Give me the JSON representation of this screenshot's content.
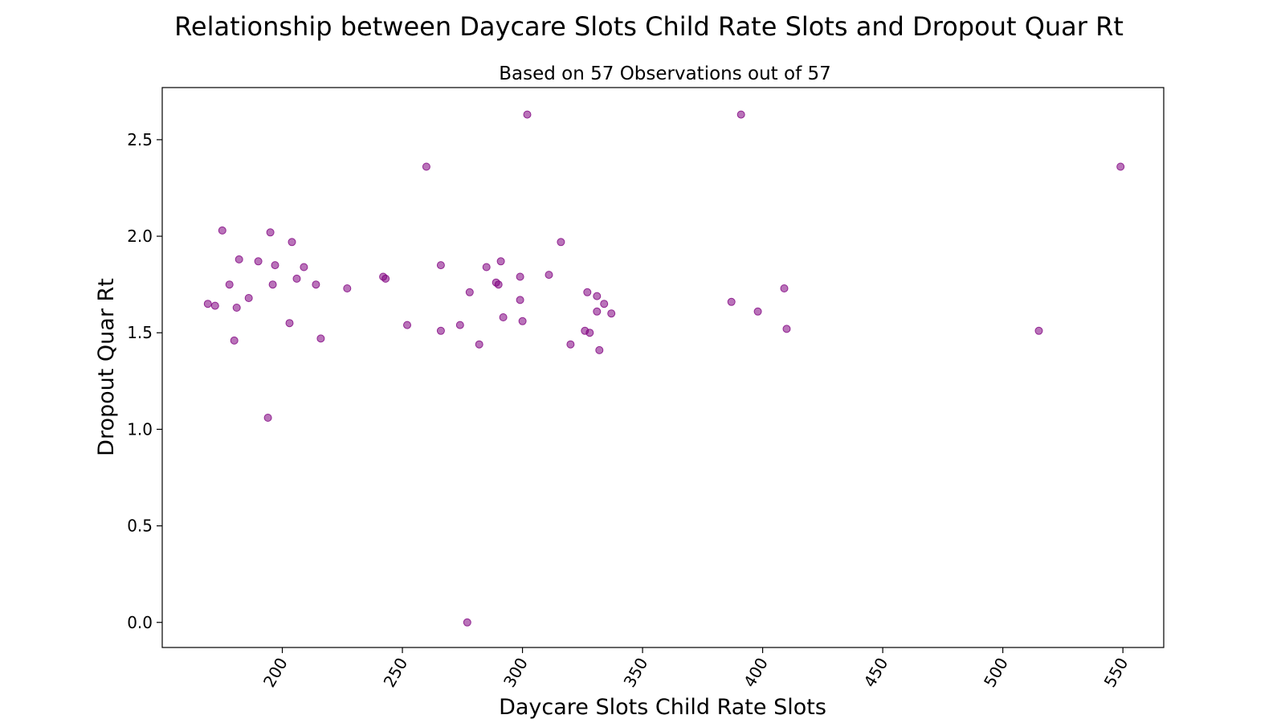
{
  "chart_data": {
    "type": "scatter",
    "title": "Relationship between Daycare Slots Child Rate Slots and Dropout Quar Rt",
    "subtitle": "Based on 57 Observations out of 57",
    "xlabel": "Daycare Slots Child Rate Slots",
    "ylabel": "Dropout Quar Rt",
    "xlim": [
      150,
      567
    ],
    "ylim": [
      -0.13,
      2.77
    ],
    "x_ticks": [
      "200",
      "250",
      "300",
      "350",
      "400",
      "450",
      "500",
      "550"
    ],
    "y_ticks": [
      "0.0",
      "0.5",
      "1.0",
      "1.5",
      "2.0",
      "2.5"
    ],
    "grid": false,
    "marker_color": "#800080",
    "points": [
      {
        "x": 169,
        "y": 1.65
      },
      {
        "x": 172,
        "y": 1.64
      },
      {
        "x": 175,
        "y": 2.03
      },
      {
        "x": 178,
        "y": 1.75
      },
      {
        "x": 180,
        "y": 1.46
      },
      {
        "x": 181,
        "y": 1.63
      },
      {
        "x": 182,
        "y": 1.88
      },
      {
        "x": 186,
        "y": 1.68
      },
      {
        "x": 190,
        "y": 1.87
      },
      {
        "x": 194,
        "y": 1.06
      },
      {
        "x": 195,
        "y": 2.02
      },
      {
        "x": 196,
        "y": 1.75
      },
      {
        "x": 197,
        "y": 1.85
      },
      {
        "x": 203,
        "y": 1.55
      },
      {
        "x": 204,
        "y": 1.97
      },
      {
        "x": 206,
        "y": 1.78
      },
      {
        "x": 209,
        "y": 1.84
      },
      {
        "x": 214,
        "y": 1.75
      },
      {
        "x": 216,
        "y": 1.47
      },
      {
        "x": 227,
        "y": 1.73
      },
      {
        "x": 242,
        "y": 1.79
      },
      {
        "x": 243,
        "y": 1.78
      },
      {
        "x": 252,
        "y": 1.54
      },
      {
        "x": 260,
        "y": 2.36
      },
      {
        "x": 266,
        "y": 1.85
      },
      {
        "x": 266,
        "y": 1.51
      },
      {
        "x": 274,
        "y": 1.54
      },
      {
        "x": 277,
        "y": 0.0
      },
      {
        "x": 278,
        "y": 1.71
      },
      {
        "x": 282,
        "y": 1.44
      },
      {
        "x": 285,
        "y": 1.84
      },
      {
        "x": 289,
        "y": 1.76
      },
      {
        "x": 290,
        "y": 1.75
      },
      {
        "x": 291,
        "y": 1.87
      },
      {
        "x": 292,
        "y": 1.58
      },
      {
        "x": 299,
        "y": 1.67
      },
      {
        "x": 299,
        "y": 1.79
      },
      {
        "x": 300,
        "y": 1.56
      },
      {
        "x": 302,
        "y": 2.63
      },
      {
        "x": 311,
        "y": 1.8
      },
      {
        "x": 316,
        "y": 1.97
      },
      {
        "x": 320,
        "y": 1.44
      },
      {
        "x": 326,
        "y": 1.51
      },
      {
        "x": 327,
        "y": 1.71
      },
      {
        "x": 328,
        "y": 1.5
      },
      {
        "x": 331,
        "y": 1.69
      },
      {
        "x": 331,
        "y": 1.61
      },
      {
        "x": 332,
        "y": 1.41
      },
      {
        "x": 334,
        "y": 1.65
      },
      {
        "x": 337,
        "y": 1.6
      },
      {
        "x": 387,
        "y": 1.66
      },
      {
        "x": 391,
        "y": 2.63
      },
      {
        "x": 398,
        "y": 1.61
      },
      {
        "x": 409,
        "y": 1.73
      },
      {
        "x": 410,
        "y": 1.52
      },
      {
        "x": 515,
        "y": 1.51
      },
      {
        "x": 549,
        "y": 2.36
      }
    ]
  }
}
